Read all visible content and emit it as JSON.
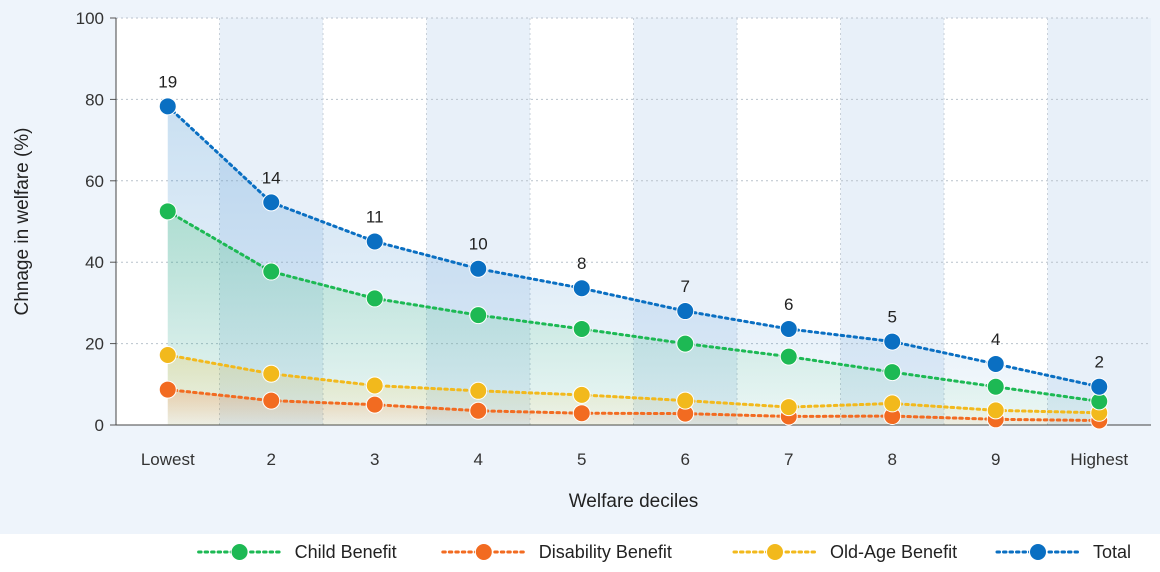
{
  "chart_data": {
    "type": "line",
    "categories": [
      "Lowest",
      "2",
      "3",
      "4",
      "5",
      "6",
      "7",
      "8",
      "9",
      "Highest"
    ],
    "xlabel": "Welfare deciles",
    "ylabel": "Chnage in welfare (%)",
    "ylim": [
      0,
      100
    ],
    "yticks": [
      0,
      20,
      40,
      60,
      80,
      100
    ],
    "grid": true,
    "legend_position": "bottom",
    "series": [
      {
        "name": "Child Benefit",
        "color": "#1db954",
        "values": [
          52.5,
          37.7,
          31.1,
          27.0,
          23.6,
          20.0,
          16.8,
          13.0,
          9.4,
          5.8
        ]
      },
      {
        "name": "Disability Benefit",
        "color": "#f26b21",
        "values": [
          8.7,
          6.0,
          5.0,
          3.5,
          2.9,
          2.8,
          2.1,
          2.2,
          1.4,
          1.1
        ]
      },
      {
        "name": "Old-Age Benefit",
        "color": "#f2b91c",
        "values": [
          17.2,
          12.6,
          9.7,
          8.4,
          7.4,
          6.0,
          4.4,
          5.3,
          3.6,
          3.0
        ]
      },
      {
        "name": "Total",
        "color": "#0a6fc2",
        "values": [
          78.3,
          54.7,
          45.1,
          38.4,
          33.6,
          28.0,
          23.6,
          20.5,
          15.0,
          9.4
        ]
      }
    ],
    "data_labels": {
      "series": "Total",
      "values": [
        "19",
        "14",
        "11",
        "10",
        "8",
        "7",
        "6",
        "5",
        "4",
        "2"
      ]
    }
  }
}
